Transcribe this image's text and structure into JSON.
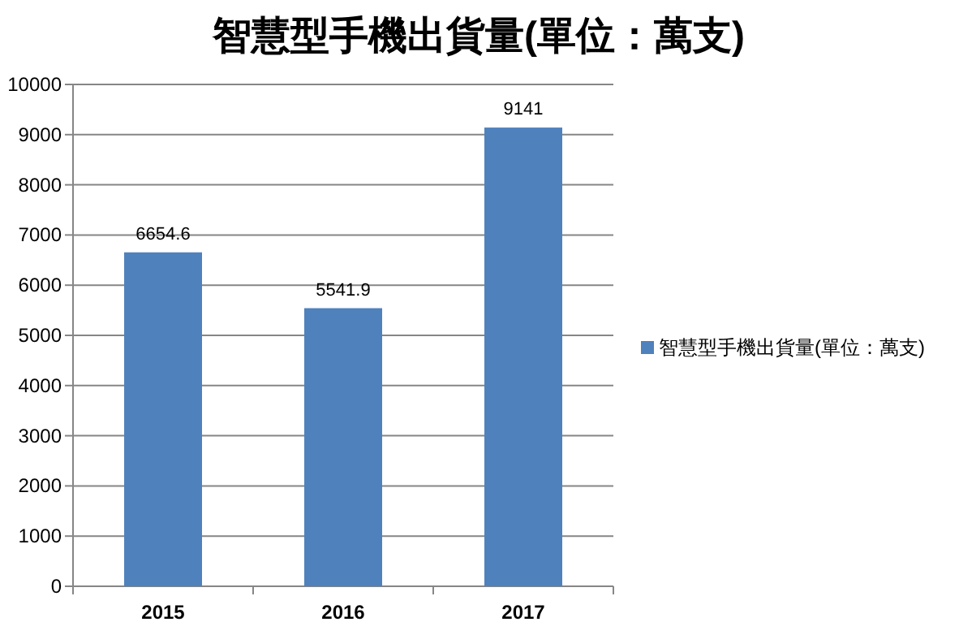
{
  "chart_data": {
    "type": "bar",
    "title": "智慧型手機出貨量(單位：萬支)",
    "categories": [
      "2015",
      "2016",
      "2017"
    ],
    "series": [
      {
        "name": "智慧型手機出貨量(單位：萬支)",
        "color": "#4f81bd",
        "values": [
          6654.6,
          5541.9,
          9141
        ]
      }
    ],
    "ylim": [
      0,
      10000
    ],
    "yticks": [
      0,
      1000,
      2000,
      3000,
      4000,
      5000,
      6000,
      7000,
      8000,
      9000,
      10000
    ],
    "grid": "y",
    "legend": "right",
    "data_labels": true
  }
}
